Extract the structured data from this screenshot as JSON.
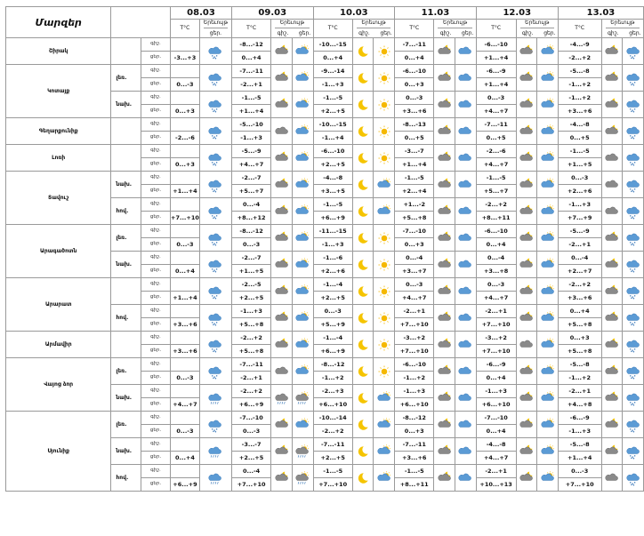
{
  "title": "Մարզեր",
  "dates": [
    "08.03",
    "09.03",
    "10.03",
    "11.03",
    "12.03",
    "13.03"
  ],
  "col_temp": "T°C",
  "col_weather": "Երեւույթ",
  "col_night": "գիշ.",
  "col_day": "ցեր.",
  "row_night": "գիշ.",
  "row_day": "ցեր.",
  "regions": [
    {
      "name": "Շիրակ",
      "parts": [
        {
          "label": "",
          "d08": [
            "sn-cloud",
            ""
          ],
          "n08": "",
          "t08": "-3...+3",
          "d": [
            {
              "n": "-8...-12",
              "dy": "0...+4",
              "ni": "pc-moon-cloud",
              "di": "sun-cloud"
            },
            {
              "n": "-10...-15",
              "dy": "0...+4",
              "ni": "moon",
              "di": "sun"
            },
            {
              "n": "-7...-11",
              "dy": "0...+4",
              "ni": "pc-moon-cloud",
              "di": "rain-cloud"
            },
            {
              "n": "-6...-10",
              "dy": "+1...+4",
              "ni": "pc-moon-cloud",
              "di": "sun-cloud"
            },
            {
              "n": "-4...-9",
              "dy": "-2...+2",
              "ni": "pc-moon-cloud",
              "di": "sn-cloud"
            }
          ]
        }
      ]
    },
    {
      "name": "Կոտայք",
      "parts": [
        {
          "label": "լեռ.",
          "d08": [
            "sn-cloud",
            ""
          ],
          "n08": "",
          "t08": "0...-3",
          "d": [
            {
              "n": "-7...-11",
              "dy": "-2...+1",
              "ni": "pc-moon-cloud",
              "di": "sun-cloud"
            },
            {
              "n": "-9...-14",
              "dy": "-1...+3",
              "ni": "moon",
              "di": "sun"
            },
            {
              "n": "-6...-10",
              "dy": "0...+3",
              "ni": "pc-moon-cloud",
              "di": "rain-cloud"
            },
            {
              "n": "-6...-9",
              "dy": "+1...+4",
              "ni": "pc-moon-cloud",
              "di": "sun-cloud"
            },
            {
              "n": "-5...-8",
              "dy": "-1...+2",
              "ni": "pc-moon-cloud",
              "di": "sn-cloud"
            }
          ]
        },
        {
          "label": "նախ.",
          "d08": [
            "sn-cloud",
            ""
          ],
          "n08": "",
          "t08": "0...+3",
          "d": [
            {
              "n": "-1...-5",
              "dy": "+1...+4",
              "ni": "pc-moon-cloud",
              "di": "sun-cloud"
            },
            {
              "n": "-1...-5",
              "dy": "+2...+5",
              "ni": "moon",
              "di": "sun"
            },
            {
              "n": "0...-3",
              "dy": "+3...+6",
              "ni": "pc-moon-cloud",
              "di": "rain-cloud"
            },
            {
              "n": "0...-3",
              "dy": "+4...+7",
              "ni": "pc-moon-cloud",
              "di": "sun-cloud"
            },
            {
              "n": "-1...+2",
              "dy": "+3...+6",
              "ni": "pc-moon-cloud",
              "di": "sn-cloud"
            }
          ]
        }
      ]
    },
    {
      "name": "Գեղարքունիք",
      "parts": [
        {
          "label": "",
          "d08": [
            "sn-cloud",
            ""
          ],
          "n08": "",
          "t08": "-2...-6",
          "d": [
            {
              "n": "-5...-10",
              "dy": "-1...+3",
              "ni": "cloud-grey",
              "di": "sun-cloud"
            },
            {
              "n": "-10...-15",
              "dy": "-1...+4",
              "ni": "moon",
              "di": "sun"
            },
            {
              "n": "-8...-13",
              "dy": "0...+5",
              "ni": "pc-moon-cloud",
              "di": "rain-cloud"
            },
            {
              "n": "-7...-11",
              "dy": "0...+5",
              "ni": "pc-moon-cloud",
              "di": "sun-cloud"
            },
            {
              "n": "-4...-8",
              "dy": "0...+5",
              "ni": "pc-moon-cloud",
              "di": "sn-cloud"
            }
          ]
        }
      ]
    },
    {
      "name": "Լոռի",
      "parts": [
        {
          "label": "",
          "d08": [
            "sn-cloud",
            ""
          ],
          "n08": "",
          "t08": "0...+3",
          "d": [
            {
              "n": "-5...-9",
              "dy": "+4...+7",
              "ni": "pc-moon-cloud",
              "di": "sun-cloud"
            },
            {
              "n": "-6...-10",
              "dy": "+2...+5",
              "ni": "moon",
              "di": "sun"
            },
            {
              "n": "-3...-7",
              "dy": "+1...+4",
              "ni": "pc-moon-cloud",
              "di": "rain-cloud"
            },
            {
              "n": "-2...-6",
              "dy": "+4...+7",
              "ni": "pc-moon-cloud",
              "di": "sun-cloud"
            },
            {
              "n": "-1...-5",
              "dy": "+1...+5",
              "ni": "cloud-grey",
              "di": "sn-cloud"
            }
          ]
        }
      ]
    },
    {
      "name": "Տավուշ",
      "parts": [
        {
          "label": "նախ.",
          "d08": [
            "sn-cloud",
            ""
          ],
          "n08": "",
          "t08": "+1...+4",
          "d": [
            {
              "n": "-2...-7",
              "dy": "+5...+7",
              "ni": "pc-moon-cloud",
              "di": "sun-cloud"
            },
            {
              "n": "-4...-8",
              "dy": "+3...+5",
              "ni": "moon",
              "di": "sun-cloud"
            },
            {
              "n": "-1...-5",
              "dy": "+2...+4",
              "ni": "pc-moon-cloud",
              "di": "rain-cloud"
            },
            {
              "n": "-1...-5",
              "dy": "+5...+7",
              "ni": "pc-moon-cloud",
              "di": "sun-cloud"
            },
            {
              "n": "0...-3",
              "dy": "+2...+6",
              "ni": "cloud-grey",
              "di": "sn-cloud"
            }
          ]
        },
        {
          "label": "հով.",
          "d08": [
            "sn-cloud",
            ""
          ],
          "n08": "",
          "t08": "+7...+10",
          "d": [
            {
              "n": "0...-4",
              "dy": "+8...+12",
              "ni": "pc-moon-cloud",
              "di": "sun-cloud"
            },
            {
              "n": "-1...-5",
              "dy": "+6...+9",
              "ni": "moon",
              "di": "sun-cloud"
            },
            {
              "n": "+1...-2",
              "dy": "+5...+8",
              "ni": "pc-moon-cloud",
              "di": "rain-cloud"
            },
            {
              "n": "-2...+2",
              "dy": "+8...+11",
              "ni": "pc-moon-cloud",
              "di": "sun-cloud"
            },
            {
              "n": "-1...+3",
              "dy": "+7...+9",
              "ni": "cloud-grey",
              "di": "sn-cloud"
            }
          ]
        }
      ]
    },
    {
      "name": "Արագածոտն",
      "parts": [
        {
          "label": "լեռ.",
          "d08": [
            "sn-cloud",
            ""
          ],
          "n08": "",
          "t08": "0...-3",
          "d": [
            {
              "n": "-8...-12",
              "dy": "0...-3",
              "ni": "pc-moon-cloud",
              "di": "sun-cloud"
            },
            {
              "n": "-11...-15",
              "dy": "-1...+3",
              "ni": "moon",
              "di": "sun"
            },
            {
              "n": "-7...-10",
              "dy": "0...+3",
              "ni": "pc-moon-cloud",
              "di": "rain-cloud"
            },
            {
              "n": "-6...-10",
              "dy": "0...+4",
              "ni": "pc-moon-cloud",
              "di": "sun-cloud"
            },
            {
              "n": "-5...-9",
              "dy": "-2...+1",
              "ni": "pc-moon-cloud",
              "di": "sn-cloud"
            }
          ]
        },
        {
          "label": "նախ.",
          "d08": [
            "sn-cloud",
            ""
          ],
          "n08": "",
          "t08": "0...+4",
          "d": [
            {
              "n": "-2...-7",
              "dy": "+1...+5",
              "ni": "pc-moon-cloud",
              "di": "sun-cloud"
            },
            {
              "n": "-1...-6",
              "dy": "+2...+6",
              "ni": "moon",
              "di": "sun"
            },
            {
              "n": "0...-4",
              "dy": "+3...+7",
              "ni": "pc-moon-cloud",
              "di": "rain-cloud"
            },
            {
              "n": "0...-4",
              "dy": "+3...+8",
              "ni": "pc-moon-cloud",
              "di": "sun-cloud"
            },
            {
              "n": "0...-4",
              "dy": "+2...+7",
              "ni": "pc-moon-cloud",
              "di": "sn-cloud"
            }
          ]
        }
      ]
    },
    {
      "name": "Արարատ",
      "parts": [
        {
          "label": "",
          "d08": [
            "sn-cloud",
            ""
          ],
          "n08": "",
          "t08": "+1...+4",
          "d": [
            {
              "n": "-2...-5",
              "dy": "+2...+5",
              "ni": "pc-moon-cloud",
              "di": "sun-cloud"
            },
            {
              "n": "-1...-4",
              "dy": "+2...+5",
              "ni": "moon",
              "di": "sun"
            },
            {
              "n": "0...-3",
              "dy": "+4...+7",
              "ni": "pc-moon-cloud",
              "di": "rain-cloud"
            },
            {
              "n": "0...-3",
              "dy": "+4...+7",
              "ni": "pc-moon-cloud",
              "di": "sun-cloud"
            },
            {
              "n": "-2...+2",
              "dy": "+3...+6",
              "ni": "pc-moon-cloud",
              "di": "sn-cloud"
            }
          ]
        },
        {
          "label": "հով.",
          "d08": [
            "sn-cloud",
            ""
          ],
          "n08": "",
          "t08": "+3...+6",
          "d": [
            {
              "n": "-1...+3",
              "dy": "+5...+8",
              "ni": "pc-moon-cloud",
              "di": "sun-cloud"
            },
            {
              "n": "0...-3",
              "dy": "+5...+9",
              "ni": "moon",
              "di": "sun"
            },
            {
              "n": "-2...+1",
              "dy": "+7...+10",
              "ni": "pc-moon-cloud",
              "di": "rain-cloud"
            },
            {
              "n": "-2...+1",
              "dy": "+7...+10",
              "ni": "pc-moon-cloud",
              "di": "sun-cloud"
            },
            {
              "n": "0...+4",
              "dy": "+5...+8",
              "ni": "pc-moon-cloud",
              "di": "sn-cloud"
            }
          ]
        }
      ]
    },
    {
      "name": "Արմավիր",
      "parts": [
        {
          "label": "",
          "d08": [
            "sn-cloud",
            ""
          ],
          "n08": "",
          "t08": "+3...+6",
          "d": [
            {
              "n": "-2...+2",
              "dy": "+5...+8",
              "ni": "pc-moon-cloud",
              "di": "sun-cloud"
            },
            {
              "n": "-1...-4",
              "dy": "+6...+9",
              "ni": "moon",
              "di": "sun"
            },
            {
              "n": "-3...+2",
              "dy": "+7...+10",
              "ni": "pc-moon-cloud",
              "di": "rain-cloud"
            },
            {
              "n": "-3...+2",
              "dy": "+7...+10",
              "ni": "cloud-grey",
              "di": "sun-cloud"
            },
            {
              "n": "0...+3",
              "dy": "+5...+8",
              "ni": "pc-moon-cloud",
              "di": "sn-cloud"
            }
          ]
        }
      ]
    },
    {
      "name": "Վայոց ձոր",
      "parts": [
        {
          "label": "լեռ.",
          "d08": [
            "sn-cloud",
            ""
          ],
          "n08": "",
          "t08": "0...-3",
          "d": [
            {
              "n": "-7...-11",
              "dy": "-2...+1",
              "ni": "cloud-grey",
              "di": "sun-cloud"
            },
            {
              "n": "-8...-12",
              "dy": "-1...+2",
              "ni": "moon",
              "di": "sun"
            },
            {
              "n": "-6...-10",
              "dy": "-1...+2",
              "ni": "pc-moon-cloud",
              "di": "rain-cloud"
            },
            {
              "n": "-6...-9",
              "dy": "0...+4",
              "ni": "pc-moon-cloud",
              "di": "sun-cloud"
            },
            {
              "n": "-5...-8",
              "dy": "-1...+2",
              "ni": "pc-moon-cloud",
              "di": "sn-cloud"
            }
          ]
        },
        {
          "label": "նախ.",
          "d08": [
            "sn-rain",
            ""
          ],
          "n08": "",
          "t08": "+4...+7",
          "d": [
            {
              "n": "-2...+2",
              "dy": "+6...+9",
              "ni": "sn-rain-cloud",
              "di": "sun-rain-cloud"
            },
            {
              "n": "-2...+3",
              "dy": "+6...+10",
              "ni": "moon",
              "di": "sun-cloud"
            },
            {
              "n": "-1...+3",
              "dy": "+6...+10",
              "ni": "pc-moon-cloud",
              "di": "rain-cloud"
            },
            {
              "n": "-1...+3",
              "dy": "+6...+10",
              "ni": "pc-moon-cloud",
              "di": "sun-cloud"
            },
            {
              "n": "-2...+1",
              "dy": "+4...+8",
              "ni": "pc-moon-cloud",
              "di": "sn-cloud"
            }
          ]
        }
      ]
    },
    {
      "name": "Սյունիք",
      "parts": [
        {
          "label": "լեռ.",
          "d08": [
            "sn-cloud",
            ""
          ],
          "n08": "",
          "t08": "0...-3",
          "d": [
            {
              "n": "-7...-10",
              "dy": "0...-3",
              "ni": "pc-moon-cloud",
              "di": "sun-cloud"
            },
            {
              "n": "-10...-14",
              "dy": "-2...+2",
              "ni": "moon",
              "di": "sun-cloud"
            },
            {
              "n": "-8...-12",
              "dy": "0...+3",
              "ni": "pc-moon-cloud",
              "di": "rain-cloud"
            },
            {
              "n": "-7...-10",
              "dy": "0...+4",
              "ni": "pc-moon-cloud",
              "di": "sun-cloud"
            },
            {
              "n": "-6...-9",
              "dy": "-1...+3",
              "ni": "pc-moon-cloud",
              "di": "sn-cloud"
            }
          ]
        },
        {
          "label": "նախ.",
          "d08": [
            "sn-rain",
            ""
          ],
          "n08": "",
          "t08": "0...+4",
          "d": [
            {
              "n": "-3...-7",
              "dy": "+2...+5",
              "ni": "pc-moon-cloud",
              "di": "sun-rain-cloud"
            },
            {
              "n": "-7...-11",
              "dy": "+2...+5",
              "ni": "moon",
              "di": "sun-cloud"
            },
            {
              "n": "-7...-11",
              "dy": "+3...+6",
              "ni": "pc-moon-cloud",
              "di": "rain-cloud"
            },
            {
              "n": "-4...-8",
              "dy": "+4...+7",
              "ni": "pc-moon-cloud",
              "di": "sun-cloud"
            },
            {
              "n": "-5...-8",
              "dy": "+1...+4",
              "ni": "pc-moon-cloud",
              "di": "sn-cloud"
            }
          ]
        },
        {
          "label": "հով.",
          "d08": [
            "sn-rain",
            ""
          ],
          "n08": "",
          "t08": "+6...+9",
          "d": [
            {
              "n": "0...-4",
              "dy": "+7...+10",
              "ni": "pc-moon-cloud",
              "di": "sun-rain-cloud"
            },
            {
              "n": "-1...-5",
              "dy": "+7...+10",
              "ni": "moon",
              "di": "sun-cloud"
            },
            {
              "n": "-1...-5",
              "dy": "+8...+11",
              "ni": "pc-moon-cloud",
              "di": "rain-cloud"
            },
            {
              "n": "-2...+1",
              "dy": "+10...+13",
              "ni": "pc-moon-cloud",
              "di": "sun-cloud"
            },
            {
              "n": "0...-3",
              "dy": "+7...+10",
              "ni": "cloud-grey",
              "di": "sn-cloud"
            }
          ]
        }
      ]
    }
  ]
}
